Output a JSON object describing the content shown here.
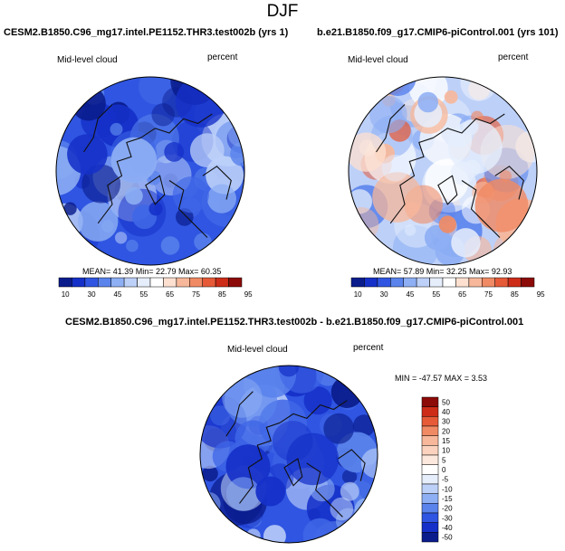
{
  "title": "DJF",
  "panels": [
    {
      "id": "left",
      "title": "CESM2.B1850.C96_mg17.intel.PE1152.THR3.test002b (yrs 1)",
      "variable": "Mid-level cloud",
      "units": "percent",
      "stats": "MEAN= 41.39  Min= 22.79  Max= 60.35",
      "mean": 41.39,
      "min": 22.79,
      "max": 60.35,
      "scale": "abs"
    },
    {
      "id": "right",
      "title": "b.e21.B1850.f09_g17.CMIP6-piControl.001 (yrs 101)",
      "variable": "Mid-level cloud",
      "units": "percent",
      "stats": "MEAN= 57.89  Min= 32.25  Max= 92.93",
      "mean": 57.89,
      "min": 32.25,
      "max": 92.93,
      "scale": "abs"
    },
    {
      "id": "diff",
      "title": "CESM2.B1850.C96_mg17.intel.PE1152.THR3.test002b - b.e21.B1850.f09_g17.CMIP6-piControl.001",
      "variable": "Mid-level cloud",
      "units": "percent",
      "stats": "MIN = -47.57 MAX =   3.53",
      "min": -47.57,
      "max": 3.53,
      "scale": "diff"
    }
  ],
  "chart_data": [
    {
      "type": "heatmap",
      "title": "CESM2.B1850.C96_mg17.intel.PE1152.THR3.test002b (yrs 1)",
      "projection": "polar stereographic (Northern Hemisphere)",
      "variable": "Mid-level cloud",
      "units": "percent",
      "mean": 41.39,
      "min": 22.79,
      "max": 60.35,
      "colorbar_levels": [
        10,
        30,
        45,
        55,
        65,
        75,
        85,
        95
      ],
      "colorbar_colors": [
        "#0a1c8c",
        "#1530c8",
        "#2f55e2",
        "#5a83ec",
        "#8eaff4",
        "#bdd0f8",
        "#e6eefc",
        "#ffffff",
        "#fde0d0",
        "#f7b79a",
        "#f08a64",
        "#e65a38",
        "#cc2c18",
        "#8c0a08"
      ]
    },
    {
      "type": "heatmap",
      "title": "b.e21.B1850.f09_g17.CMIP6-piControl.001 (yrs 101)",
      "projection": "polar stereographic (Northern Hemisphere)",
      "variable": "Mid-level cloud",
      "units": "percent",
      "mean": 57.89,
      "min": 32.25,
      "max": 92.93,
      "colorbar_levels": [
        10,
        30,
        45,
        55,
        65,
        75,
        85,
        95
      ],
      "colorbar_colors": [
        "#0a1c8c",
        "#1530c8",
        "#2f55e2",
        "#5a83ec",
        "#8eaff4",
        "#bdd0f8",
        "#e6eefc",
        "#ffffff",
        "#fde0d0",
        "#f7b79a",
        "#f08a64",
        "#e65a38",
        "#cc2c18",
        "#8c0a08"
      ]
    },
    {
      "type": "heatmap",
      "title": "CESM2.B1850.C96_mg17.intel.PE1152.THR3.test002b - b.e21.B1850.f09_g17.CMIP6-piControl.001",
      "projection": "polar stereographic (Northern Hemisphere)",
      "variable": "Mid-level cloud",
      "units": "percent",
      "min": -47.57,
      "max": 3.53,
      "colorbar_levels": [
        50,
        40,
        30,
        20,
        15,
        10,
        5,
        0,
        -5,
        -10,
        -15,
        -20,
        -30,
        -40,
        -50
      ],
      "colorbar_labels": [
        "50",
        "40",
        "30",
        "20",
        "15",
        "10",
        "5",
        "0",
        "-5",
        "-10",
        "-15",
        "-20",
        "-30",
        "-40",
        "-50"
      ],
      "colorbar_colors": [
        "#8c0a08",
        "#cc2c18",
        "#e65a38",
        "#f08a64",
        "#f7b79a",
        "#fbd2bd",
        "#fde8de",
        "#ffffff",
        "#e6eefc",
        "#bdd0f8",
        "#8eaff4",
        "#5a83ec",
        "#2f55e2",
        "#1530c8",
        "#0a1c8c"
      ]
    }
  ]
}
